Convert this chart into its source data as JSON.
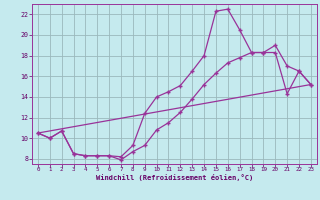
{
  "xlabel": "Windchill (Refroidissement éolien,°C)",
  "bg_color": "#c5eaee",
  "grid_color": "#9ab8bc",
  "line_color": "#993399",
  "xlim_min": -0.5,
  "xlim_max": 23.5,
  "ylim_min": 7.5,
  "ylim_max": 23.0,
  "xticks": [
    0,
    1,
    2,
    3,
    4,
    5,
    6,
    7,
    8,
    9,
    10,
    11,
    12,
    13,
    14,
    15,
    16,
    17,
    18,
    19,
    20,
    21,
    22,
    23
  ],
  "yticks": [
    8,
    10,
    12,
    14,
    16,
    18,
    20,
    22
  ],
  "curve1_x": [
    0,
    1,
    2,
    3,
    4,
    5,
    6,
    7,
    8,
    9,
    10,
    11,
    12,
    13,
    14,
    15,
    16,
    17,
    18,
    19,
    20,
    21,
    22,
    23
  ],
  "curve1_y": [
    10.5,
    10.0,
    10.7,
    8.5,
    8.3,
    8.3,
    8.3,
    8.2,
    9.3,
    12.4,
    14.0,
    14.5,
    15.1,
    16.5,
    18.0,
    22.3,
    22.5,
    20.5,
    18.3,
    18.3,
    19.0,
    17.0,
    16.5,
    15.2
  ],
  "curve2_x": [
    0,
    1,
    2,
    3,
    4,
    5,
    6,
    7,
    8,
    9,
    10,
    11,
    12,
    13,
    14,
    15,
    16,
    17,
    18,
    19,
    20,
    21,
    22,
    23
  ],
  "curve2_y": [
    10.5,
    10.0,
    10.7,
    8.5,
    8.3,
    8.3,
    8.3,
    7.9,
    8.7,
    9.3,
    10.8,
    11.5,
    12.5,
    13.8,
    15.2,
    16.3,
    17.3,
    17.8,
    18.3,
    18.3,
    18.3,
    14.3,
    16.5,
    15.2
  ],
  "line3_x": [
    0,
    23
  ],
  "line3_y": [
    10.5,
    15.2
  ]
}
